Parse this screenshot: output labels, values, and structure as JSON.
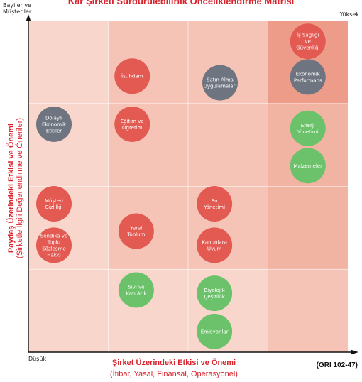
{
  "chart_data": {
    "type": "scatter",
    "title": "Kar Şirketi Sürdürülebilirlik Önceliklendirme Matrisi",
    "corner_labels": {
      "y_top": "Bayiler ve\nMüşteriler",
      "y_high": "Yüksek",
      "origin": "Düşük"
    },
    "xlabel": "Şirket Üzerindeki Etkisi ve Önemi",
    "xlabel_sub": "(İtibar, Yasal, Finansal, Operasyonel)",
    "ylabel": "Paydaş Üzerindeki Etkisi ve Önemi",
    "ylabel_sub": "(Şirketle İlgili Değerlendirme ve Öneriler)",
    "reference": "(GRI 102-47)",
    "xlim": [
      0,
      4
    ],
    "ylim": [
      0,
      4
    ],
    "grid": true,
    "cell_levels": [
      [
        1,
        2,
        2,
        1
      ],
      [
        1,
        2,
        2,
        1
      ],
      [
        0,
        1,
        1,
        0
      ],
      [
        0,
        0,
        0,
        0
      ]
    ],
    "cell_colors": [
      "#f9d6cc",
      "#f5c4b6",
      "#f1b4a3",
      "#ec9c88"
    ],
    "grid_rows_top_to_bottom": [
      [
        0,
        1,
        1,
        3
      ],
      [
        0,
        1,
        1,
        2
      ],
      [
        0,
        1,
        1,
        2
      ],
      [
        0,
        0,
        0,
        1
      ]
    ],
    "category_colors": {
      "red": "#e25a52",
      "gray": "#6e7480",
      "green": "#6cc26a"
    },
    "points": [
      {
        "label": "İş Sağlığı ve Güvenliği",
        "x": 3.5,
        "y": 3.75,
        "color": "red"
      },
      {
        "label": "Ekonomik Performans",
        "x": 3.5,
        "y": 3.32,
        "color": "gray"
      },
      {
        "label": "İstihdam",
        "x": 1.3,
        "y": 3.33,
        "color": "red"
      },
      {
        "label": "Satın Alma Uygulamaları",
        "x": 2.4,
        "y": 3.25,
        "color": "gray"
      },
      {
        "label": "Dolaylı Ekonomik Etkiler",
        "x": 0.32,
        "y": 2.75,
        "color": "gray"
      },
      {
        "label": "Eğitim ve Öğretim",
        "x": 1.3,
        "y": 2.75,
        "color": "red"
      },
      {
        "label": "Enerji Yönetimi",
        "x": 3.5,
        "y": 2.7,
        "color": "green"
      },
      {
        "label": "Malzemeler",
        "x": 3.5,
        "y": 2.25,
        "color": "green"
      },
      {
        "label": "Müşteri Gizliliği",
        "x": 0.32,
        "y": 1.79,
        "color": "red"
      },
      {
        "label": "Su Yönetimi",
        "x": 2.33,
        "y": 1.79,
        "color": "red"
      },
      {
        "label": "Sendika ve Toplu Sözleşme Hakkı",
        "x": 0.32,
        "y": 1.29,
        "color": "red"
      },
      {
        "label": "Yerel Toplum",
        "x": 1.35,
        "y": 1.46,
        "color": "red"
      },
      {
        "label": "Kanunlara Uyum",
        "x": 2.33,
        "y": 1.29,
        "color": "red"
      },
      {
        "label": "Sıvı ve Katı Atık",
        "x": 1.35,
        "y": 0.75,
        "color": "green"
      },
      {
        "label": "Biyolojik Çeşitlilik",
        "x": 2.33,
        "y": 0.71,
        "color": "green"
      },
      {
        "label": "Emisyonlar",
        "x": 2.33,
        "y": 0.25,
        "color": "green"
      }
    ]
  }
}
